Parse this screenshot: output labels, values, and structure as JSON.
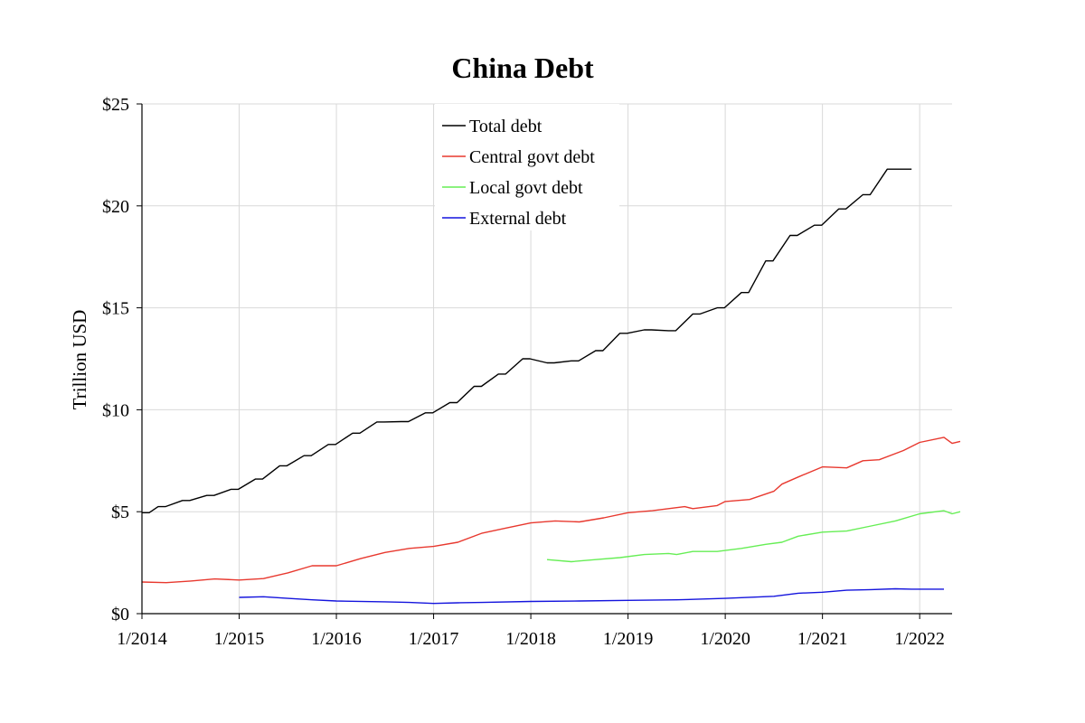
{
  "chart_data": {
    "type": "line",
    "title": "China Debt",
    "xlabel": "",
    "ylabel": "Trillion USD",
    "xlim": [
      "2014-01",
      "2022-05"
    ],
    "ylim": [
      0,
      25
    ],
    "x_ticks": [
      "1/2014",
      "1/2015",
      "1/2016",
      "1/2017",
      "1/2018",
      "1/2019",
      "1/2020",
      "1/2021",
      "1/2022"
    ],
    "y_ticks": [
      "$0",
      "$5",
      "$10",
      "$15",
      "$20",
      "$25"
    ],
    "grid": true,
    "legend": "top-center",
    "series": [
      {
        "name": "Total debt",
        "color": "#000000",
        "step": true,
        "points": [
          [
            "2014-01",
            4.95
          ],
          [
            "2014-03",
            5.25
          ],
          [
            "2014-06",
            5.55
          ],
          [
            "2014-09",
            5.8
          ],
          [
            "2014-12",
            6.1
          ],
          [
            "2015-03",
            6.6
          ],
          [
            "2015-06",
            7.25
          ],
          [
            "2015-09",
            7.75
          ],
          [
            "2015-12",
            8.3
          ],
          [
            "2016-03",
            8.85
          ],
          [
            "2016-06",
            9.4
          ],
          [
            "2016-09",
            9.42
          ],
          [
            "2016-12",
            9.85
          ],
          [
            "2017-03",
            10.35
          ],
          [
            "2017-06",
            11.15
          ],
          [
            "2017-09",
            11.75
          ],
          [
            "2017-12",
            12.5
          ],
          [
            "2018-03",
            12.3
          ],
          [
            "2018-06",
            12.4
          ],
          [
            "2018-09",
            12.9
          ],
          [
            "2018-12",
            13.75
          ],
          [
            "2019-03",
            13.92
          ],
          [
            "2019-06",
            13.88
          ],
          [
            "2019-09",
            14.7
          ],
          [
            "2019-12",
            15.0
          ],
          [
            "2020-03",
            15.75
          ],
          [
            "2020-06",
            17.3
          ],
          [
            "2020-09",
            18.55
          ],
          [
            "2020-12",
            19.05
          ],
          [
            "2021-03",
            19.85
          ],
          [
            "2021-06",
            20.55
          ],
          [
            "2021-09",
            21.8
          ],
          [
            "2021-12",
            21.8
          ]
        ]
      },
      {
        "name": "Central govt debt",
        "color": "#e8392f",
        "step": false,
        "points": [
          [
            "2014-01",
            1.55
          ],
          [
            "2014-04",
            1.52
          ],
          [
            "2014-07",
            1.6
          ],
          [
            "2014-10",
            1.7
          ],
          [
            "2015-01",
            1.65
          ],
          [
            "2015-04",
            1.72
          ],
          [
            "2015-07",
            2.0
          ],
          [
            "2015-10",
            2.35
          ],
          [
            "2016-01",
            2.35
          ],
          [
            "2016-04",
            2.7
          ],
          [
            "2016-07",
            3.0
          ],
          [
            "2016-10",
            3.2
          ],
          [
            "2017-01",
            3.3
          ],
          [
            "2017-04",
            3.5
          ],
          [
            "2017-07",
            3.95
          ],
          [
            "2017-10",
            4.2
          ],
          [
            "2018-01",
            4.45
          ],
          [
            "2018-04",
            4.55
          ],
          [
            "2018-07",
            4.5
          ],
          [
            "2018-10",
            4.7
          ],
          [
            "2019-01",
            4.95
          ],
          [
            "2019-04",
            5.05
          ],
          [
            "2019-06",
            5.15
          ],
          [
            "2019-08",
            5.25
          ],
          [
            "2019-09",
            5.15
          ],
          [
            "2019-12",
            5.3
          ],
          [
            "2020-01",
            5.5
          ],
          [
            "2020-04",
            5.6
          ],
          [
            "2020-07",
            6.0
          ],
          [
            "2020-08",
            6.35
          ],
          [
            "2020-10",
            6.7
          ],
          [
            "2021-01",
            7.2
          ],
          [
            "2021-04",
            7.15
          ],
          [
            "2021-06",
            7.5
          ],
          [
            "2021-08",
            7.55
          ],
          [
            "2021-11",
            8.0
          ],
          [
            "2022-01",
            8.4
          ],
          [
            "2022-04",
            8.65
          ],
          [
            "2022-05",
            8.35
          ],
          [
            "2022-06",
            8.45
          ]
        ]
      },
      {
        "name": "Local govt debt",
        "color": "#66ee55",
        "step": false,
        "points": [
          [
            "2018-03",
            2.65
          ],
          [
            "2018-06",
            2.55
          ],
          [
            "2018-09",
            2.65
          ],
          [
            "2018-12",
            2.75
          ],
          [
            "2019-03",
            2.9
          ],
          [
            "2019-06",
            2.95
          ],
          [
            "2019-07",
            2.9
          ],
          [
            "2019-09",
            3.05
          ],
          [
            "2019-12",
            3.05
          ],
          [
            "2020-03",
            3.2
          ],
          [
            "2020-06",
            3.4
          ],
          [
            "2020-08",
            3.5
          ],
          [
            "2020-10",
            3.8
          ],
          [
            "2021-01",
            4.0
          ],
          [
            "2021-04",
            4.05
          ],
          [
            "2021-07",
            4.3
          ],
          [
            "2021-10",
            4.55
          ],
          [
            "2022-01",
            4.9
          ],
          [
            "2022-04",
            5.05
          ],
          [
            "2022-05",
            4.9
          ],
          [
            "2022-06",
            5.0
          ]
        ]
      },
      {
        "name": "External debt",
        "color": "#1414dd",
        "step": false,
        "points": [
          [
            "2015-01",
            0.8
          ],
          [
            "2015-04",
            0.83
          ],
          [
            "2015-07",
            0.75
          ],
          [
            "2015-10",
            0.68
          ],
          [
            "2016-01",
            0.62
          ],
          [
            "2016-07",
            0.58
          ],
          [
            "2016-10",
            0.55
          ],
          [
            "2017-01",
            0.5
          ],
          [
            "2017-04",
            0.53
          ],
          [
            "2017-07",
            0.55
          ],
          [
            "2018-01",
            0.6
          ],
          [
            "2018-07",
            0.62
          ],
          [
            "2019-01",
            0.65
          ],
          [
            "2019-07",
            0.68
          ],
          [
            "2020-01",
            0.75
          ],
          [
            "2020-07",
            0.85
          ],
          [
            "2020-10",
            1.0
          ],
          [
            "2021-01",
            1.05
          ],
          [
            "2021-04",
            1.15
          ],
          [
            "2021-07",
            1.18
          ],
          [
            "2021-10",
            1.22
          ],
          [
            "2021-12",
            1.2
          ],
          [
            "2022-04",
            1.2
          ]
        ]
      }
    ]
  }
}
